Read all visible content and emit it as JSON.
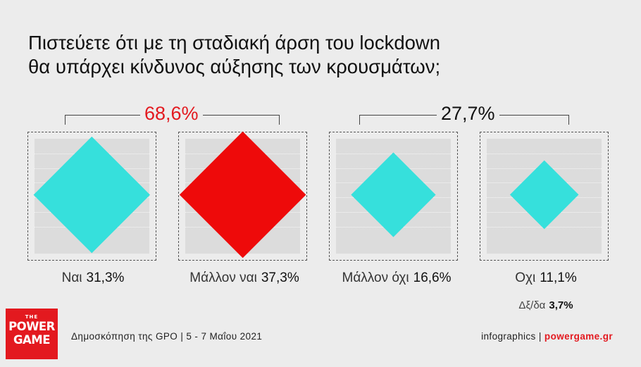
{
  "title": {
    "line1": "Πιστεύετε ότι με τη σταδιακή άρση του lockdown",
    "line2": "θα υπάρχει κίνδυνος αύξησης των κρουσμάτων;"
  },
  "groups": [
    {
      "label": "68,6%",
      "color": "#e3191f"
    },
    {
      "label": "27,7%",
      "color": "#111111"
    }
  ],
  "chart_data": {
    "type": "diamond-area",
    "title": "Πιστεύετε ότι με τη σταδιακή άρση του lockdown θα υπάρχει κίνδυνος αύξησης των κρουσμάτων;",
    "categories": [
      "Ναι",
      "Μάλλον ναι",
      "Μάλλον όχι",
      "Οχι"
    ],
    "values": [
      31.3,
      37.3,
      16.6,
      11.1
    ],
    "value_labels": [
      "31,3%",
      "37,3%",
      "16,6%",
      "11,1%"
    ],
    "colors": [
      "#36e0dc",
      "#ee0a0a",
      "#36e0dc",
      "#36e0dc"
    ],
    "group_totals": [
      {
        "label": "68,6%",
        "members": [
          "Ναι",
          "Μάλλον ναι"
        ]
      },
      {
        "label": "27,7%",
        "members": [
          "Μάλλον όχι",
          "Οχι"
        ]
      }
    ],
    "other": {
      "label": "Δξ/δα",
      "value": 3.7,
      "value_label": "3,7%"
    }
  },
  "footer": {
    "source": "Δημοσκόπηση της GPO | 5 - 7 Μαΐου 2021",
    "credit_prefix": "infographics | ",
    "credit_site": "powergame.gr"
  },
  "logo": {
    "the": "THE",
    "line1": "POWER",
    "line2": "GAME"
  }
}
